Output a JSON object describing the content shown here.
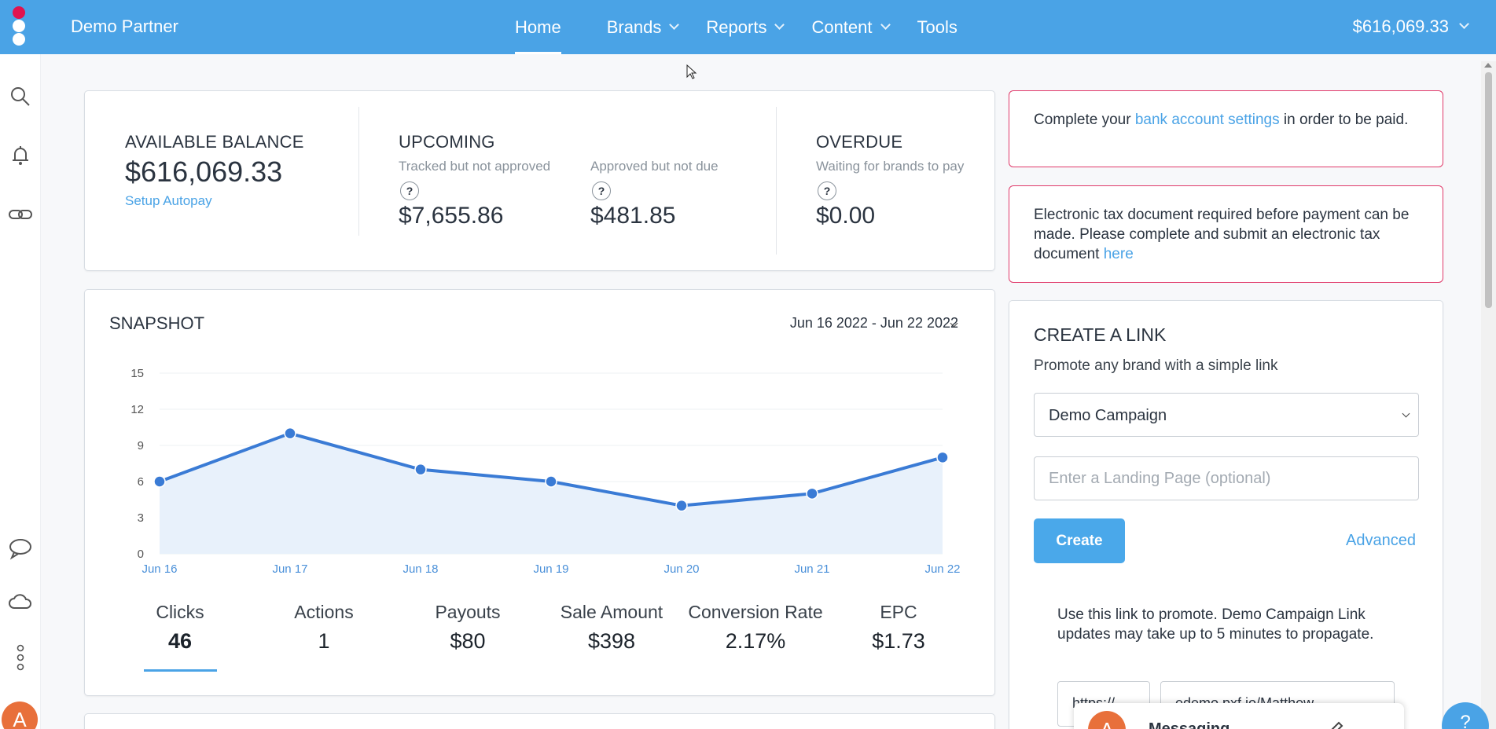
{
  "header": {
    "partner_name": "Demo Partner",
    "nav": [
      {
        "label": "Home"
      },
      {
        "label": "Brands"
      },
      {
        "label": "Reports"
      },
      {
        "label": "Content"
      },
      {
        "label": "Tools"
      }
    ],
    "balance": "$616,069.33"
  },
  "sidebar": {
    "icons": [
      "search-icon",
      "bell-icon",
      "link-icon",
      "chat-icon",
      "cloud-icon",
      "more-icon"
    ],
    "avatar_letter": "A"
  },
  "balances": {
    "available": {
      "label": "AVAILABLE BALANCE",
      "value": "$616,069.33",
      "link": "Setup Autopay"
    },
    "upcoming": {
      "label": "UPCOMING",
      "tracked": {
        "sub": "Tracked but not approved",
        "value": "$7,655.86"
      },
      "approved": {
        "sub": "Approved but not due",
        "value": "$481.85"
      }
    },
    "overdue": {
      "label": "OVERDUE",
      "sub": "Waiting for brands to pay",
      "value": "$0.00"
    },
    "help_mark": "?"
  },
  "alerts": {
    "bank": {
      "pre": "Complete your ",
      "link": "bank account settings",
      "post": " in order to be paid."
    },
    "tax": {
      "pre": "Electronic tax document required before payment can be made. Please complete and submit an electronic tax document ",
      "link": "here"
    }
  },
  "snapshot": {
    "title": "SNAPSHOT",
    "date_range": "Jun 16 2022 - Jun 22 2022",
    "metrics": [
      {
        "label": "Clicks",
        "value": "46"
      },
      {
        "label": "Actions",
        "value": "1"
      },
      {
        "label": "Payouts",
        "value": "$80"
      },
      {
        "label": "Sale Amount",
        "value": "$398"
      },
      {
        "label": "Conversion Rate",
        "value": "2.17%"
      },
      {
        "label": "EPC",
        "value": "$1.73"
      }
    ]
  },
  "chart_data": {
    "type": "area",
    "x": [
      "Jun 16",
      "Jun 17",
      "Jun 18",
      "Jun 19",
      "Jun 20",
      "Jun 21",
      "Jun 22"
    ],
    "series": [
      {
        "values": [
          6,
          10,
          7,
          6,
          4,
          5,
          8
        ]
      }
    ],
    "yticks": [
      0,
      3,
      6,
      9,
      12,
      15
    ],
    "ylim": [
      0,
      15
    ],
    "grid": true,
    "color": "#3a7bd5",
    "fill": "#e8f1fb"
  },
  "create_link": {
    "title": "CREATE A LINK",
    "subtitle": "Promote any brand with a simple link",
    "campaign": "Demo Campaign",
    "landing_placeholder": "Enter a Landing Page (optional)",
    "create_label": "Create",
    "advanced_label": "Advanced",
    "info": "Use this link to promote. Demo Campaign Link updates may take up to 5 minutes to propagate.",
    "protocol": "https://",
    "url": "edemo.pxf.io/Matthew"
  },
  "messaging": {
    "avatar_letter": "A",
    "title": "Messaging"
  },
  "help_bubble": "?"
}
